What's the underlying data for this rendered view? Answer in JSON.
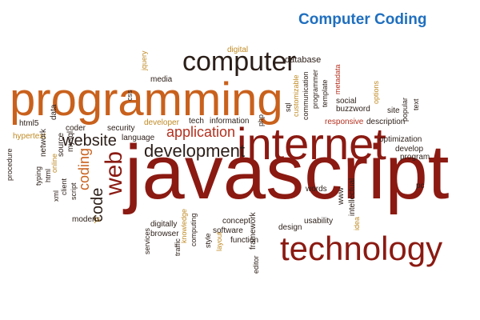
{
  "title": "Computer Coding",
  "palette": {
    "dark_red": "#8b1a12",
    "red": "#b5301f",
    "orange": "#c9611c",
    "dark": "#2b1e18",
    "gold": "#c08b26",
    "blue": "#1f6fbf"
  },
  "words": [
    {
      "id": "javascript",
      "text": "javascript"
    },
    {
      "id": "programming",
      "text": "programming"
    },
    {
      "id": "internet",
      "text": "internet"
    },
    {
      "id": "technology",
      "text": "technology"
    },
    {
      "id": "computer",
      "text": "computer"
    },
    {
      "id": "development",
      "text": "development"
    },
    {
      "id": "application",
      "text": "application"
    },
    {
      "id": "website",
      "text": "website"
    },
    {
      "id": "web",
      "text": "web"
    },
    {
      "id": "code",
      "text": "code"
    },
    {
      "id": "coding",
      "text": "coding"
    },
    {
      "id": "database",
      "text": "database"
    },
    {
      "id": "digital",
      "text": "digital"
    },
    {
      "id": "media",
      "text": "media"
    },
    {
      "id": "jquery",
      "text": "jquery"
    },
    {
      "id": "css",
      "text": "css"
    },
    {
      "id": "developer",
      "text": "developer"
    },
    {
      "id": "tech",
      "text": "tech"
    },
    {
      "id": "information",
      "text": "information"
    },
    {
      "id": "coder",
      "text": "coder"
    },
    {
      "id": "security",
      "text": "security"
    },
    {
      "id": "language",
      "text": "language"
    },
    {
      "id": "html5",
      "text": "html5"
    },
    {
      "id": "data",
      "text": "data"
    },
    {
      "id": "hypertext",
      "text": "hypertext"
    },
    {
      "id": "procedure",
      "text": "procedure"
    },
    {
      "id": "network",
      "text": "network"
    },
    {
      "id": "typing",
      "text": "typing"
    },
    {
      "id": "html",
      "text": "html"
    },
    {
      "id": "online",
      "text": "online"
    },
    {
      "id": "source",
      "text": "source"
    },
    {
      "id": "mysql",
      "text": "mysql"
    },
    {
      "id": "xml",
      "text": "xml"
    },
    {
      "id": "client",
      "text": "client"
    },
    {
      "id": "script",
      "text": "script"
    },
    {
      "id": "js",
      "text": "js"
    },
    {
      "id": "modern",
      "text": "modern"
    },
    {
      "id": "php",
      "text": "php"
    },
    {
      "id": "sql",
      "text": "sql"
    },
    {
      "id": "customizable",
      "text": "customizable"
    },
    {
      "id": "communication",
      "text": "communication"
    },
    {
      "id": "programmer",
      "text": "programmer"
    },
    {
      "id": "template",
      "text": "template"
    },
    {
      "id": "metadata",
      "text": "metadata"
    },
    {
      "id": "social",
      "text": "social"
    },
    {
      "id": "buzzword",
      "text": "buzzword"
    },
    {
      "id": "responsive",
      "text": "responsive"
    },
    {
      "id": "description",
      "text": "description"
    },
    {
      "id": "options",
      "text": "options"
    },
    {
      "id": "site",
      "text": "site"
    },
    {
      "id": "popular",
      "text": "popular"
    },
    {
      "id": "text",
      "text": "text"
    },
    {
      "id": "optimization",
      "text": "optimization"
    },
    {
      "id": "develop",
      "text": "develop"
    },
    {
      "id": "program",
      "text": "program"
    },
    {
      "id": "pc",
      "text": "pc"
    },
    {
      "id": "words",
      "text": "words"
    },
    {
      "id": "www",
      "text": "www"
    },
    {
      "id": "intellectual",
      "text": "intellectual"
    },
    {
      "id": "idea",
      "text": "idea"
    },
    {
      "id": "usability",
      "text": "usability"
    },
    {
      "id": "design",
      "text": "design"
    },
    {
      "id": "concept",
      "text": "concept"
    },
    {
      "id": "framework",
      "text": "framework"
    },
    {
      "id": "function",
      "text": "function"
    },
    {
      "id": "software",
      "text": "software"
    },
    {
      "id": "editor",
      "text": "editor"
    },
    {
      "id": "services",
      "text": "services"
    },
    {
      "id": "digitally",
      "text": "digitally"
    },
    {
      "id": "browser",
      "text": "browser"
    },
    {
      "id": "traffic",
      "text": "traffic"
    },
    {
      "id": "knowledge",
      "text": "knowledge"
    },
    {
      "id": "computing",
      "text": "computing"
    },
    {
      "id": "style",
      "text": "style"
    },
    {
      "id": "layout",
      "text": "layout"
    }
  ]
}
